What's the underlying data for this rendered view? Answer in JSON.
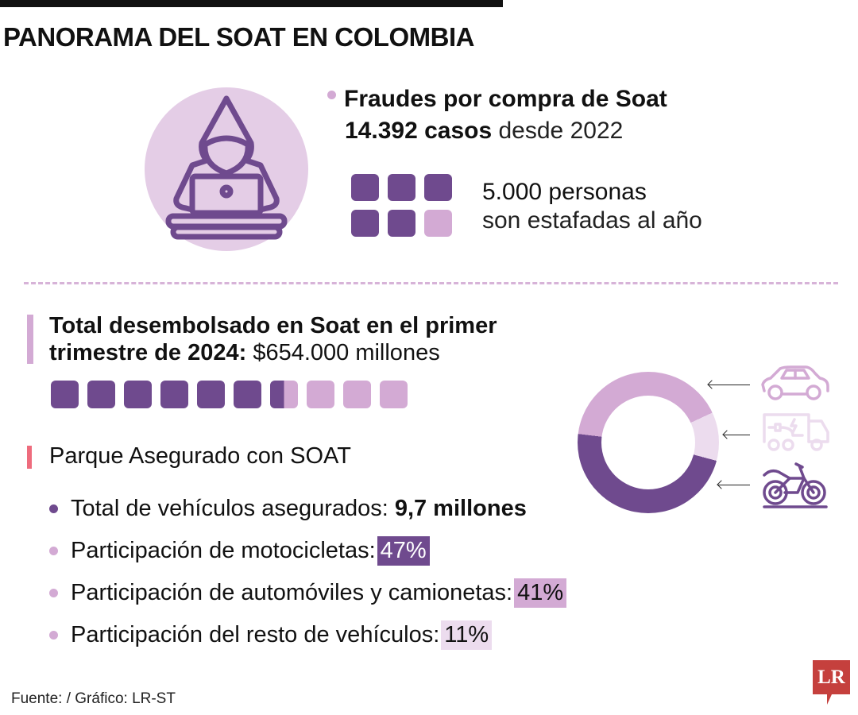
{
  "header": {
    "title": "PANORAMA DEL SOAT EN COLOMBIA"
  },
  "fraud": {
    "icon": "hooded-hacker-laptop-icon",
    "heading": "Fraudes por compra de Soat",
    "cases_bold": "14.392 casos",
    "cases_rest": "desde 2022",
    "people_bold": "5.000 personas",
    "people_rest": "son estafadas al año",
    "squares": [
      "#6f4a8e",
      "#6f4a8e",
      "#6f4a8e",
      "#6f4a8e",
      "#6f4a8e",
      "#d3aad4"
    ]
  },
  "disbursed": {
    "label_bold": "Total desembolsado en Soat en el primer trimestre de 2024:",
    "value": "$654.000 millones",
    "squares_filled": 6.5,
    "squares_total": 10
  },
  "parque": {
    "title": "Parque Asegurado con SOAT",
    "items": [
      {
        "label": "Total de vehículos asegurados:",
        "value": "9,7 millones",
        "dot": "#6f4a8e"
      },
      {
        "label": "Participación de motocicletas:",
        "value": "47%",
        "dot": "#d3aad4",
        "badge_bg": "#6f4a8e",
        "badge_fg": "#ffffff"
      },
      {
        "label": "Participación de automóviles y camionetas:",
        "value": "41%",
        "dot": "#d3aad4",
        "badge_bg": "#d3aad4",
        "badge_fg": "#111111"
      },
      {
        "label": "Participación del resto de vehículos:",
        "value": "11%",
        "dot": "#d3aad4",
        "badge_bg": "#ecdcee",
        "badge_fg": "#111111"
      }
    ]
  },
  "chart_data": {
    "type": "pie",
    "title": "Parque Asegurado con SOAT",
    "categories": [
      "Motocicletas",
      "Automóviles y camionetas",
      "Resto de vehículos"
    ],
    "values": [
      47,
      41,
      11
    ],
    "colors": [
      "#6f4a8e",
      "#d3aad4",
      "#ecdcee"
    ],
    "icons": [
      "motorcycle-icon",
      "car-icon",
      "electric-truck-icon"
    ],
    "donut": true
  },
  "colors": {
    "dark_purple": "#6f4a8e",
    "light_purple": "#d3aad4",
    "pale_purple": "#ecdcee",
    "accent_red": "#ee6c7d",
    "logo_red": "#c5403d"
  },
  "footer": {
    "source": "Fuente: / Gráfico: LR-ST",
    "logo": "LR"
  }
}
